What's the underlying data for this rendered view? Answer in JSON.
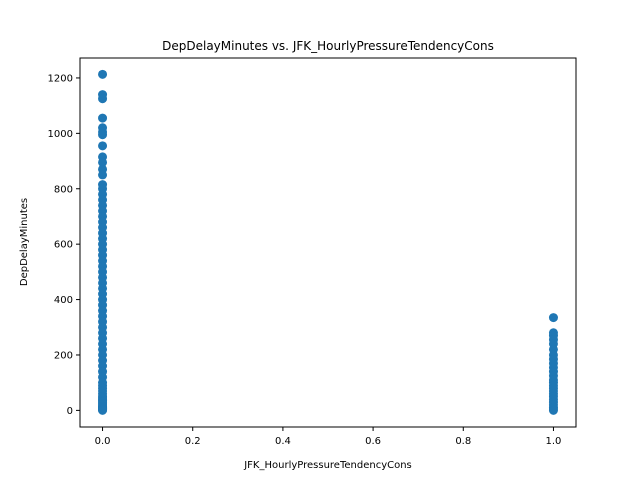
{
  "chart_data": {
    "type": "scatter",
    "title": "DepDelayMinutes vs. JFK_HourlyPressureTendencyCons",
    "xlabel": "JFK_HourlyPressureTendencyCons",
    "ylabel": "DepDelayMinutes",
    "xlim": [
      -0.05,
      1.05
    ],
    "ylim": [
      -60,
      1272
    ],
    "xticks": [
      0.0,
      0.2,
      0.4,
      0.6,
      0.8,
      1.0
    ],
    "xtick_labels": [
      "0.0",
      "0.2",
      "0.4",
      "0.6",
      "0.8",
      "1.0"
    ],
    "yticks": [
      0,
      200,
      400,
      600,
      800,
      1000,
      1200
    ],
    "ytick_labels": [
      "0",
      "200",
      "400",
      "600",
      "800",
      "1000",
      "1200"
    ],
    "grid": false,
    "series": [
      {
        "color": "#1f77b4",
        "x": [
          0,
          0,
          0,
          0,
          0,
          0,
          0,
          0,
          0,
          0,
          0,
          0,
          0,
          0,
          0,
          0,
          0,
          0,
          0,
          0,
          0,
          0,
          0,
          0,
          0,
          0,
          0,
          0,
          0,
          0,
          0,
          0,
          0,
          0,
          0,
          0,
          0,
          0,
          0,
          0,
          0,
          0,
          0,
          0,
          0,
          0,
          0,
          0,
          0,
          0,
          0,
          0,
          0,
          0,
          0,
          0,
          0,
          0,
          0,
          0,
          0,
          0,
          0,
          0,
          0,
          0,
          0,
          0,
          0,
          0,
          1,
          1,
          1,
          1,
          1,
          1,
          1,
          1,
          1,
          1,
          1,
          1,
          1,
          1,
          1,
          1,
          1,
          1,
          1,
          1,
          1,
          1,
          1,
          1,
          1
        ],
        "y": [
          1213,
          1140,
          1125,
          1055,
          1020,
          1005,
          995,
          955,
          915,
          895,
          870,
          850,
          815,
          800,
          780,
          760,
          740,
          720,
          700,
          680,
          660,
          640,
          620,
          600,
          580,
          560,
          540,
          520,
          500,
          480,
          460,
          440,
          420,
          400,
          380,
          360,
          340,
          320,
          300,
          280,
          260,
          240,
          220,
          200,
          180,
          160,
          140,
          120,
          100,
          90,
          80,
          70,
          60,
          50,
          45,
          40,
          35,
          30,
          25,
          20,
          15,
          12,
          10,
          8,
          6,
          5,
          4,
          3,
          2,
          0,
          335,
          280,
          270,
          255,
          240,
          220,
          200,
          185,
          170,
          155,
          140,
          125,
          110,
          100,
          90,
          80,
          70,
          60,
          50,
          40,
          30,
          20,
          10,
          5,
          0
        ]
      }
    ]
  }
}
